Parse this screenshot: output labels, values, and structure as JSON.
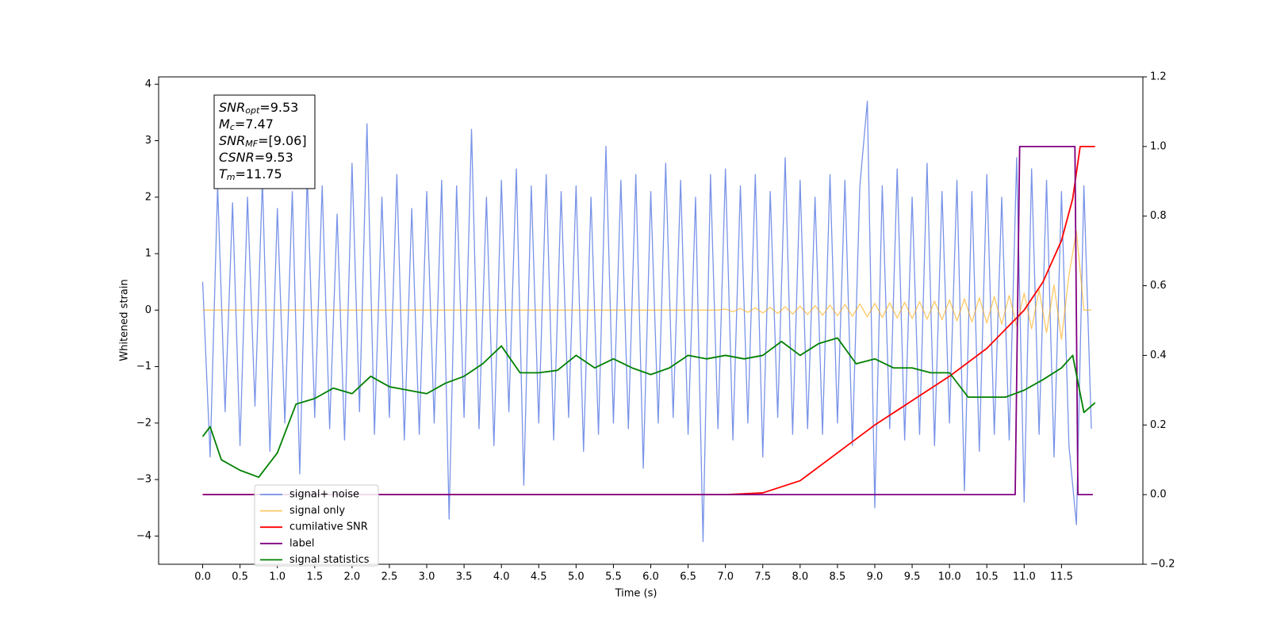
{
  "chart_data": {
    "type": "line",
    "xlabel": "Time (s)",
    "ylabel": "Whitened strain",
    "xlim": [
      -0.59,
      12.59
    ],
    "ylim": [
      -4.5,
      4.13
    ],
    "y2lim": [
      -0.2,
      1.2
    ],
    "xticks": [
      {
        "value": 0,
        "label": "0.0"
      },
      0.5,
      {
        "value": 1,
        "label": "1.0"
      },
      1.5,
      {
        "value": 2,
        "label": "2.0"
      },
      2.5,
      {
        "value": 3,
        "label": "3.0"
      },
      3.5,
      {
        "value": 4,
        "label": "4.0"
      },
      4.5,
      {
        "value": 5,
        "label": "5.0"
      },
      5.5,
      {
        "value": 6,
        "label": "6.0"
      },
      6.5,
      {
        "value": 7,
        "label": "7.0"
      },
      7.5,
      {
        "value": 8,
        "label": "8.0"
      },
      8.5,
      {
        "value": 9,
        "label": "9.0"
      },
      9.5,
      {
        "value": 10,
        "label": "10.0"
      },
      10.5,
      {
        "value": 11,
        "label": "11.0"
      },
      11.5
    ],
    "yticks": [
      {
        "value": -4,
        "label": "−4"
      },
      {
        "value": -3,
        "label": "−3"
      },
      {
        "value": -2,
        "label": "−2"
      },
      {
        "value": -1,
        "label": "−1"
      },
      0,
      1,
      2,
      3,
      4
    ],
    "y2ticks": [
      {
        "value": -0.2,
        "label": "−0.2"
      },
      {
        "value": 0,
        "label": "0.0"
      },
      0.2,
      0.4,
      0.6,
      0.8,
      {
        "value": 1,
        "label": "1.0"
      },
      1.2
    ],
    "x": [
      0.0,
      0.1,
      0.2,
      0.3,
      0.4,
      0.5,
      0.6,
      0.7,
      0.8,
      0.9,
      1.0,
      1.1,
      1.2,
      1.3,
      1.4,
      1.5,
      1.6,
      1.7,
      1.8,
      1.9,
      2.0,
      2.1,
      2.2,
      2.3,
      2.4,
      2.5,
      2.6,
      2.7,
      2.8,
      2.9,
      3.0,
      3.1,
      3.2,
      3.3,
      3.4,
      3.5,
      3.6,
      3.7,
      3.8,
      3.9,
      4.0,
      4.1,
      4.2,
      4.3,
      4.4,
      4.5,
      4.6,
      4.7,
      4.8,
      4.9,
      5.0,
      5.1,
      5.2,
      5.3,
      5.4,
      5.5,
      5.6,
      5.7,
      5.8,
      5.9,
      6.0,
      6.1,
      6.2,
      6.3,
      6.4,
      6.5,
      6.6,
      6.7,
      6.8,
      6.9,
      7.0,
      7.1,
      7.2,
      7.3,
      7.4,
      7.5,
      7.6,
      7.7,
      7.8,
      7.9,
      8.0,
      8.1,
      8.2,
      8.3,
      8.4,
      8.5,
      8.6,
      8.7,
      8.8,
      8.9,
      9.0,
      9.1,
      9.2,
      9.3,
      9.4,
      9.5,
      9.6,
      9.7,
      9.8,
      9.9,
      10.0,
      10.1,
      10.2,
      10.3,
      10.4,
      10.5,
      10.6,
      10.7,
      10.8,
      10.9,
      11.0,
      11.1,
      11.2,
      11.3,
      11.4,
      11.5,
      11.6,
      11.7,
      11.8,
      11.9
    ],
    "series": [
      {
        "name": "signal+ noise",
        "color": "#7893e8",
        "values": [
          0.5,
          -2.6,
          2.2,
          -1.8,
          1.9,
          -2.4,
          2.0,
          -1.7,
          2.3,
          -2.5,
          1.8,
          -2.0,
          2.1,
          -2.9,
          2.4,
          -1.9,
          2.2,
          -2.1,
          1.7,
          -2.3,
          2.6,
          -1.8,
          3.3,
          -2.2,
          2.0,
          -1.9,
          2.4,
          -2.3,
          1.8,
          -2.2,
          2.1,
          -2.0,
          2.3,
          -3.7,
          2.2,
          -1.9,
          3.2,
          -2.1,
          2.0,
          -2.4,
          2.3,
          -1.8,
          2.5,
          -3.1,
          2.2,
          -2.0,
          2.4,
          -2.3,
          2.1,
          -1.9,
          2.2,
          -2.5,
          2.0,
          -2.2,
          2.9,
          -2.0,
          2.3,
          -2.1,
          2.4,
          -2.8,
          2.1,
          -2.0,
          2.6,
          -1.9,
          2.3,
          -2.2,
          2.0,
          -4.1,
          2.4,
          -2.1,
          2.5,
          -2.3,
          2.2,
          -2.0,
          2.4,
          -2.6,
          2.1,
          -1.9,
          2.7,
          -2.2,
          2.3,
          -2.1,
          2.0,
          -2.2,
          2.4,
          -2.0,
          2.3,
          -2.4,
          2.2,
          3.7,
          -3.5,
          2.2,
          -2.1,
          2.5,
          -2.3,
          2.0,
          -2.2,
          2.6,
          -2.4,
          2.1,
          -2.0,
          2.3,
          -3.2,
          2.1,
          -2.5,
          2.4,
          -2.2,
          2.0,
          -2.3,
          2.7,
          -3.4,
          2.5,
          -2.2,
          2.3,
          -2.6,
          2.1,
          -2.4,
          -3.8,
          2.2,
          -2.1
        ]
      },
      {
        "name": "signal only",
        "color": "#ffa500",
        "values": [
          0,
          0,
          0,
          0,
          0,
          0,
          0,
          0,
          0,
          0,
          0,
          0,
          0,
          0,
          0,
          0,
          0,
          0,
          0,
          0,
          0,
          0,
          0,
          0,
          0,
          0,
          0,
          0,
          0,
          0,
          0,
          0,
          0,
          0,
          0,
          0,
          0,
          0,
          0,
          0,
          0,
          0,
          0,
          0,
          0,
          0,
          0,
          0,
          0,
          0,
          0,
          0,
          0,
          0,
          0,
          0,
          0,
          0,
          0,
          0,
          0,
          0,
          0,
          0,
          0,
          0,
          0,
          0,
          0,
          0,
          0.02,
          -0.03,
          0.03,
          -0.04,
          0.04,
          -0.05,
          0.05,
          -0.06,
          0.06,
          -0.07,
          0.07,
          -0.08,
          0.08,
          -0.09,
          0.09,
          -0.1,
          0.1,
          -0.11,
          0.11,
          -0.12,
          0.12,
          -0.13,
          0.13,
          -0.14,
          0.14,
          -0.15,
          0.15,
          -0.16,
          0.16,
          -0.17,
          0.18,
          -0.19,
          0.2,
          -0.21,
          0.22,
          -0.23,
          0.24,
          -0.25,
          0.26,
          -0.28,
          0.3,
          -0.33,
          0.36,
          -0.4,
          0.45,
          -0.52,
          0.62,
          1.4,
          0,
          0
        ]
      },
      {
        "name": "cumilative SNR",
        "color": "#ff0000",
        "axis": "y2",
        "x": [
          0,
          7,
          7.5,
          8,
          8.5,
          9,
          9.5,
          10,
          10.5,
          11,
          11.25,
          11.5,
          11.65,
          11.75,
          11.95
        ],
        "values": [
          0,
          0,
          0.005,
          0.04,
          0.12,
          0.2,
          0.27,
          0.34,
          0.42,
          0.53,
          0.61,
          0.73,
          0.85,
          1.0,
          1.0
        ]
      },
      {
        "name": "label",
        "color": "#800080",
        "axis": "y2",
        "x": [
          0,
          10.88,
          10.94,
          11.68,
          11.72,
          11.92
        ],
        "values": [
          0,
          0,
          1,
          1,
          0,
          0
        ]
      },
      {
        "name": "signal statistics",
        "color": "#008000",
        "axis": "y2",
        "x": [
          0,
          0.1,
          0.25,
          0.5,
          0.75,
          1.0,
          1.25,
          1.5,
          1.75,
          2.0,
          2.25,
          2.5,
          2.75,
          3.0,
          3.25,
          3.5,
          3.75,
          4.0,
          4.25,
          4.5,
          4.75,
          5.0,
          5.25,
          5.5,
          5.75,
          6.0,
          6.25,
          6.5,
          6.75,
          7.0,
          7.25,
          7.5,
          7.75,
          8.0,
          8.25,
          8.5,
          8.75,
          9.0,
          9.25,
          9.5,
          9.75,
          10.0,
          10.25,
          10.5,
          10.75,
          11.0,
          11.25,
          11.5,
          11.65,
          11.8,
          11.95
        ],
        "values": [
          0.167,
          0.195,
          0.1,
          0.07,
          0.05,
          0.12,
          0.26,
          0.276,
          0.306,
          0.29,
          0.34,
          0.31,
          0.3,
          0.29,
          0.32,
          0.34,
          0.376,
          0.427,
          0.35,
          0.35,
          0.357,
          0.4,
          0.364,
          0.39,
          0.364,
          0.345,
          0.364,
          0.4,
          0.39,
          0.4,
          0.39,
          0.4,
          0.44,
          0.4,
          0.434,
          0.45,
          0.376,
          0.39,
          0.364,
          0.364,
          0.35,
          0.35,
          0.28,
          0.28,
          0.28,
          0.3,
          0.33,
          0.364,
          0.4,
          0.236,
          0.264
        ]
      }
    ],
    "annotation": [
      {
        "name": "SNR",
        "sub": "opt",
        "text": "=9.53"
      },
      {
        "name": "M",
        "sub": "c",
        "text": "=7.47"
      },
      {
        "name": "SNR",
        "sub": "MF",
        "text": "=[9.06]"
      },
      {
        "name": "CSNR",
        "text": "=9.53"
      },
      {
        "name": "T",
        "sub": "m",
        "text": "=11.75"
      }
    ]
  }
}
